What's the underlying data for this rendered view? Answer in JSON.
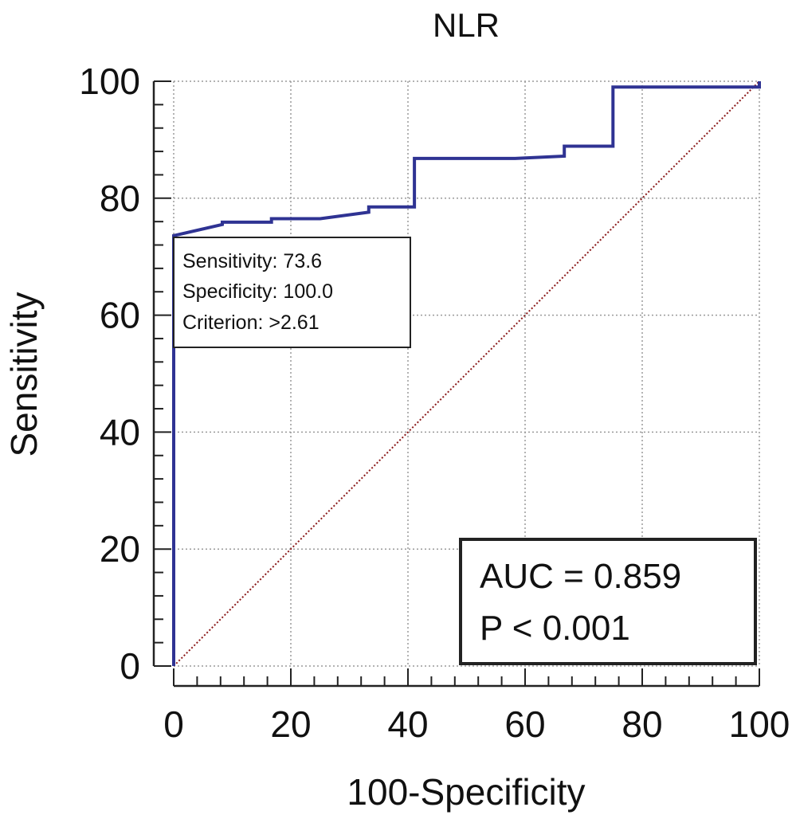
{
  "chart_data": {
    "type": "line",
    "title": "NLR",
    "xlabel": "100-Specificity",
    "ylabel": "Sensitivity",
    "xlim": [
      0,
      100
    ],
    "ylim": [
      0,
      100
    ],
    "x_ticks": [
      "0",
      "20",
      "40",
      "60",
      "80",
      "100"
    ],
    "y_ticks": [
      "0",
      "20",
      "40",
      "60",
      "80",
      "100"
    ],
    "grid": true,
    "series": [
      {
        "name": "",
        "color": "#2f3393",
        "style": "solid",
        "x": [
          0,
          0,
          8.3,
          8.3,
          16.7,
          16.7,
          25.0,
          33.3,
          33.3,
          41.1,
          41.1,
          58.3,
          66.7,
          66.7,
          75.0,
          75.0,
          100,
          100
        ],
        "y": [
          0,
          73.6,
          75.5,
          75.9,
          75.9,
          76.5,
          76.5,
          77.6,
          78.5,
          78.5,
          86.8,
          86.8,
          87.2,
          88.9,
          88.9,
          99.0,
          99.0,
          100
        ]
      },
      {
        "name": "",
        "color": "#8b1a1a",
        "style": "dotted",
        "x": [
          0,
          100
        ],
        "y": [
          0,
          100
        ]
      }
    ],
    "annotations": {
      "point_box": {
        "anchor": [
          0,
          73.6
        ],
        "lines": [
          "Sensitivity: 73.6",
          "Specificity: 100.0",
          "Criterion: >2.61"
        ]
      },
      "stats_box": {
        "position": "bottom-right",
        "lines": [
          "AUC = 0.859",
          "P < 0.001"
        ]
      }
    }
  }
}
